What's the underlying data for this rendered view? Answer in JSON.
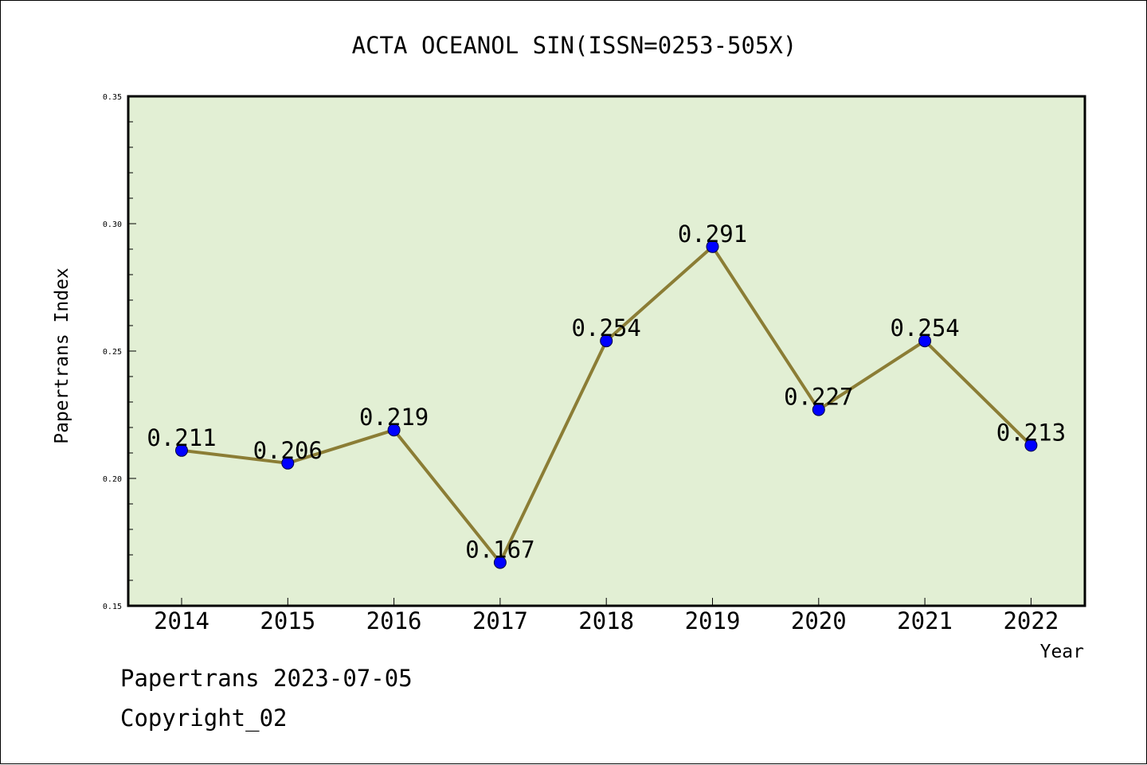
{
  "chart_data": {
    "type": "line",
    "title": "ACTA OCEANOL SIN(ISSN=0253-505X)",
    "xlabel": "Year",
    "ylabel": "Papertrans Index",
    "categories": [
      "2014",
      "2015",
      "2016",
      "2017",
      "2018",
      "2019",
      "2020",
      "2021",
      "2022"
    ],
    "series": [
      {
        "values": [
          0.211,
          0.206,
          0.219,
          0.167,
          0.254,
          0.291,
          0.227,
          0.254,
          0.213
        ]
      }
    ],
    "data_labels": [
      "0.211",
      "0.206",
      "0.219",
      "0.167",
      "0.254",
      "0.291",
      "0.227",
      "0.254",
      "0.213"
    ],
    "ylim": [
      0.15,
      0.35
    ],
    "y_ticks": [
      "0.15",
      "0.20",
      "0.25",
      "0.30",
      "0.35"
    ],
    "y_tick_values": [
      0.15,
      0.2,
      0.25,
      0.3,
      0.35
    ],
    "grid": false,
    "legend": "none",
    "colors": {
      "plot_background": "#e2efd4",
      "line": "#8b7d35",
      "marker": "#0000ff",
      "axis": "#000000"
    }
  },
  "footer": {
    "line1": "Papertrans 2023-07-05",
    "line2": "Copyright_02"
  }
}
